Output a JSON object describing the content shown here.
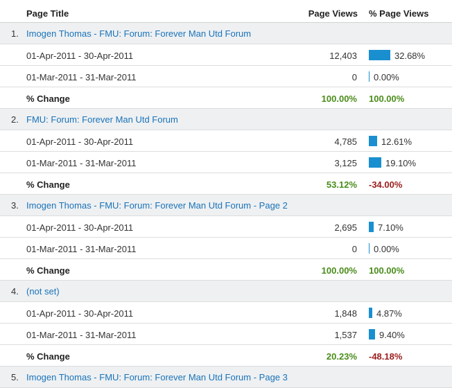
{
  "columns": {
    "title": "Page Title",
    "page_views": "Page Views",
    "pct_page_views": "% Page Views"
  },
  "change_label": "% Change",
  "groups": [
    {
      "index": "1.",
      "title": "Imogen Thomas - FMU: Forum: Forever Man Utd Forum",
      "rows": [
        {
          "date": "01-Apr-2011 - 30-Apr-2011",
          "views": "12,403",
          "pct": "32.68%",
          "pct_value": 32.68
        },
        {
          "date": "01-Mar-2011 - 31-Mar-2011",
          "views": "0",
          "pct": "0.00%",
          "pct_value": 0
        }
      ],
      "change": {
        "views": "100.00%",
        "views_sign": "pos",
        "pct": "100.00%",
        "pct_sign": "pos"
      }
    },
    {
      "index": "2.",
      "title": "FMU: Forum: Forever Man Utd Forum",
      "rows": [
        {
          "date": "01-Apr-2011 - 30-Apr-2011",
          "views": "4,785",
          "pct": "12.61%",
          "pct_value": 12.61
        },
        {
          "date": "01-Mar-2011 - 31-Mar-2011",
          "views": "3,125",
          "pct": "19.10%",
          "pct_value": 19.1
        }
      ],
      "change": {
        "views": "53.12%",
        "views_sign": "pos",
        "pct": "-34.00%",
        "pct_sign": "neg"
      }
    },
    {
      "index": "3.",
      "title": "Imogen Thomas - FMU: Forum: Forever Man Utd Forum - Page 2",
      "rows": [
        {
          "date": "01-Apr-2011 - 30-Apr-2011",
          "views": "2,695",
          "pct": "7.10%",
          "pct_value": 7.1
        },
        {
          "date": "01-Mar-2011 - 31-Mar-2011",
          "views": "0",
          "pct": "0.00%",
          "pct_value": 0
        }
      ],
      "change": {
        "views": "100.00%",
        "views_sign": "pos",
        "pct": "100.00%",
        "pct_sign": "pos"
      }
    },
    {
      "index": "4.",
      "title": "(not set)",
      "rows": [
        {
          "date": "01-Apr-2011 - 30-Apr-2011",
          "views": "1,848",
          "pct": "4.87%",
          "pct_value": 4.87
        },
        {
          "date": "01-Mar-2011 - 31-Mar-2011",
          "views": "1,537",
          "pct": "9.40%",
          "pct_value": 9.4
        }
      ],
      "change": {
        "views": "20.23%",
        "views_sign": "pos",
        "pct": "-48.18%",
        "pct_sign": "neg"
      }
    },
    {
      "index": "5.",
      "title": "Imogen Thomas - FMU: Forum: Forever Man Utd Forum - Page 3",
      "rows": [],
      "change": null
    }
  ],
  "colors": {
    "link": "#1a73b8",
    "bar": "#1a8fd0",
    "positive": "#4a8c1a",
    "negative": "#9b1c1c",
    "group_bg": "#eef0f2"
  }
}
